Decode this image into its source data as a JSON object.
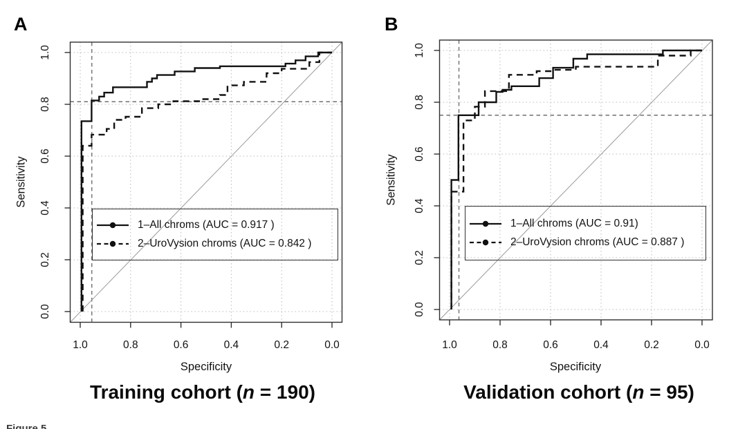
{
  "figure": {
    "partial_caption": "Figure 5",
    "panels": [
      {
        "panel_label": "A",
        "xlabel": "Specificity",
        "ylabel": "Sensitivity",
        "caption_prefix": "Training cohort (",
        "caption_n": "n",
        "caption_suffix": " = 190)"
      },
      {
        "panel_label": "B",
        "xlabel": "Specificity",
        "ylabel": "Sensitivity",
        "caption_prefix": "Validation cohort (",
        "caption_n": "n",
        "caption_suffix": " = 95)"
      }
    ]
  },
  "chart_data": [
    {
      "type": "line",
      "subtype": "roc-curve",
      "panel": "A",
      "title": "Training cohort (n = 190)",
      "n": 190,
      "xlabel": "Specificity",
      "ylabel": "Sensitivity",
      "x_axis": {
        "ticks": [
          1.0,
          0.8,
          0.6,
          0.4,
          0.2,
          0.0
        ],
        "tick_labels": [
          "1.0",
          "0.8",
          "0.6",
          "0.4",
          "0.2",
          "0.0"
        ],
        "range": [
          1.0,
          0.0
        ],
        "reversed": true
      },
      "y_axis": {
        "ticks": [
          0.0,
          0.2,
          0.4,
          0.6,
          0.8,
          1.0
        ],
        "tick_labels": [
          "0.0",
          "0.2",
          "0.4",
          "0.6",
          "0.8",
          "1.0"
        ],
        "range": [
          0.0,
          1.0
        ]
      },
      "grid": "dotted",
      "diagonal_reference": true,
      "threshold_lines": {
        "specificity": 0.954,
        "sensitivity": 0.81
      },
      "legend_position": "inside-bottom-center",
      "series": [
        {
          "name": "1-All chroms",
          "auc": 0.917,
          "style": "solid",
          "marker": "filled-circle",
          "label": "1–All chroms (AUC = 0.917 )",
          "points": [
            [
              0.995,
              0
            ],
            [
              0.995,
              0.735
            ],
            [
              0.955,
              0.735
            ],
            [
              0.955,
              0.815
            ],
            [
              0.925,
              0.815
            ],
            [
              0.925,
              0.83
            ],
            [
              0.905,
              0.83
            ],
            [
              0.905,
              0.845
            ],
            [
              0.87,
              0.845
            ],
            [
              0.87,
              0.866
            ],
            [
              0.735,
              0.866
            ],
            [
              0.735,
              0.887
            ],
            [
              0.715,
              0.887
            ],
            [
              0.715,
              0.9
            ],
            [
              0.695,
              0.9
            ],
            [
              0.695,
              0.913
            ],
            [
              0.625,
              0.913
            ],
            [
              0.625,
              0.927
            ],
            [
              0.545,
              0.927
            ],
            [
              0.545,
              0.94
            ],
            [
              0.445,
              0.94
            ],
            [
              0.445,
              0.947
            ],
            [
              0.185,
              0.947
            ],
            [
              0.185,
              0.957
            ],
            [
              0.145,
              0.957
            ],
            [
              0.145,
              0.97
            ],
            [
              0.105,
              0.97
            ],
            [
              0.105,
              0.985
            ],
            [
              0.055,
              0.985
            ],
            [
              0.055,
              1.0
            ],
            [
              0,
              1.0
            ]
          ]
        },
        {
          "name": "2-UroVysion chroms",
          "auc": 0.842,
          "style": "dashed",
          "marker": "filled-circle",
          "label": "2–UroVysion chroms (AUC = 0.842 )",
          "points": [
            [
              0.99,
              0
            ],
            [
              0.99,
              0.64
            ],
            [
              0.955,
              0.64
            ],
            [
              0.955,
              0.683
            ],
            [
              0.895,
              0.683
            ],
            [
              0.895,
              0.705
            ],
            [
              0.865,
              0.705
            ],
            [
              0.865,
              0.74
            ],
            [
              0.82,
              0.74
            ],
            [
              0.82,
              0.752
            ],
            [
              0.755,
              0.752
            ],
            [
              0.755,
              0.785
            ],
            [
              0.69,
              0.785
            ],
            [
              0.69,
              0.8
            ],
            [
              0.63,
              0.8
            ],
            [
              0.63,
              0.812
            ],
            [
              0.52,
              0.812
            ],
            [
              0.52,
              0.82
            ],
            [
              0.445,
              0.82
            ],
            [
              0.445,
              0.836
            ],
            [
              0.415,
              0.836
            ],
            [
              0.415,
              0.873
            ],
            [
              0.35,
              0.873
            ],
            [
              0.35,
              0.887
            ],
            [
              0.26,
              0.887
            ],
            [
              0.26,
              0.92
            ],
            [
              0.2,
              0.92
            ],
            [
              0.2,
              0.937
            ],
            [
              0.09,
              0.937
            ],
            [
              0.09,
              0.963
            ],
            [
              0.05,
              0.963
            ],
            [
              0.05,
              1.0
            ],
            [
              0,
              1.0
            ]
          ]
        }
      ]
    },
    {
      "type": "line",
      "subtype": "roc-curve",
      "panel": "B",
      "title": "Validation cohort (n = 95)",
      "n": 95,
      "xlabel": "Specificity",
      "ylabel": "Sensitivity",
      "x_axis": {
        "ticks": [
          1.0,
          0.8,
          0.6,
          0.4,
          0.2,
          0.0
        ],
        "tick_labels": [
          "1.0",
          "0.8",
          "0.6",
          "0.4",
          "0.2",
          "0.0"
        ],
        "range": [
          1.0,
          0.0
        ],
        "reversed": true
      },
      "y_axis": {
        "ticks": [
          0.0,
          0.2,
          0.4,
          0.6,
          0.8,
          1.0
        ],
        "tick_labels": [
          "0.0",
          "0.2",
          "0.4",
          "0.6",
          "0.8",
          "1.0"
        ],
        "range": [
          0.0,
          1.0
        ]
      },
      "grid": "dotted",
      "diagonal_reference": true,
      "threshold_lines": {
        "specificity": 0.963,
        "sensitivity": 0.75
      },
      "legend_position": "inside-bottom-center",
      "series": [
        {
          "name": "1-All chroms",
          "auc": 0.91,
          "style": "solid",
          "marker": "filled-circle",
          "label": "1–All chroms (AUC = 0.91)",
          "points": [
            [
              0.993,
              0
            ],
            [
              0.993,
              0.5
            ],
            [
              0.965,
              0.5
            ],
            [
              0.965,
              0.75
            ],
            [
              0.885,
              0.75
            ],
            [
              0.885,
              0.8
            ],
            [
              0.815,
              0.8
            ],
            [
              0.815,
              0.84
            ],
            [
              0.79,
              0.84
            ],
            [
              0.79,
              0.848
            ],
            [
              0.755,
              0.848
            ],
            [
              0.755,
              0.862
            ],
            [
              0.645,
              0.862
            ],
            [
              0.645,
              0.893
            ],
            [
              0.59,
              0.893
            ],
            [
              0.59,
              0.933
            ],
            [
              0.51,
              0.933
            ],
            [
              0.51,
              0.968
            ],
            [
              0.455,
              0.968
            ],
            [
              0.455,
              0.985
            ],
            [
              0.155,
              0.985
            ],
            [
              0.155,
              1.0
            ],
            [
              0,
              1.0
            ]
          ]
        },
        {
          "name": "2-UroVysion chroms",
          "auc": 0.887,
          "style": "dashed",
          "marker": "filled-circle",
          "label": "2–UroVysion chroms (AUC = 0.887 )",
          "points": [
            [
              0.993,
              0
            ],
            [
              0.993,
              0.455
            ],
            [
              0.945,
              0.455
            ],
            [
              0.945,
              0.73
            ],
            [
              0.9,
              0.73
            ],
            [
              0.9,
              0.783
            ],
            [
              0.86,
              0.783
            ],
            [
              0.86,
              0.843
            ],
            [
              0.765,
              0.843
            ],
            [
              0.765,
              0.906
            ],
            [
              0.655,
              0.906
            ],
            [
              0.655,
              0.92
            ],
            [
              0.59,
              0.92
            ],
            [
              0.59,
              0.925
            ],
            [
              0.5,
              0.925
            ],
            [
              0.5,
              0.937
            ],
            [
              0.175,
              0.937
            ],
            [
              0.175,
              0.98
            ],
            [
              0.045,
              0.98
            ],
            [
              0.045,
              1.0
            ],
            [
              0,
              1.0
            ]
          ]
        }
      ]
    }
  ]
}
